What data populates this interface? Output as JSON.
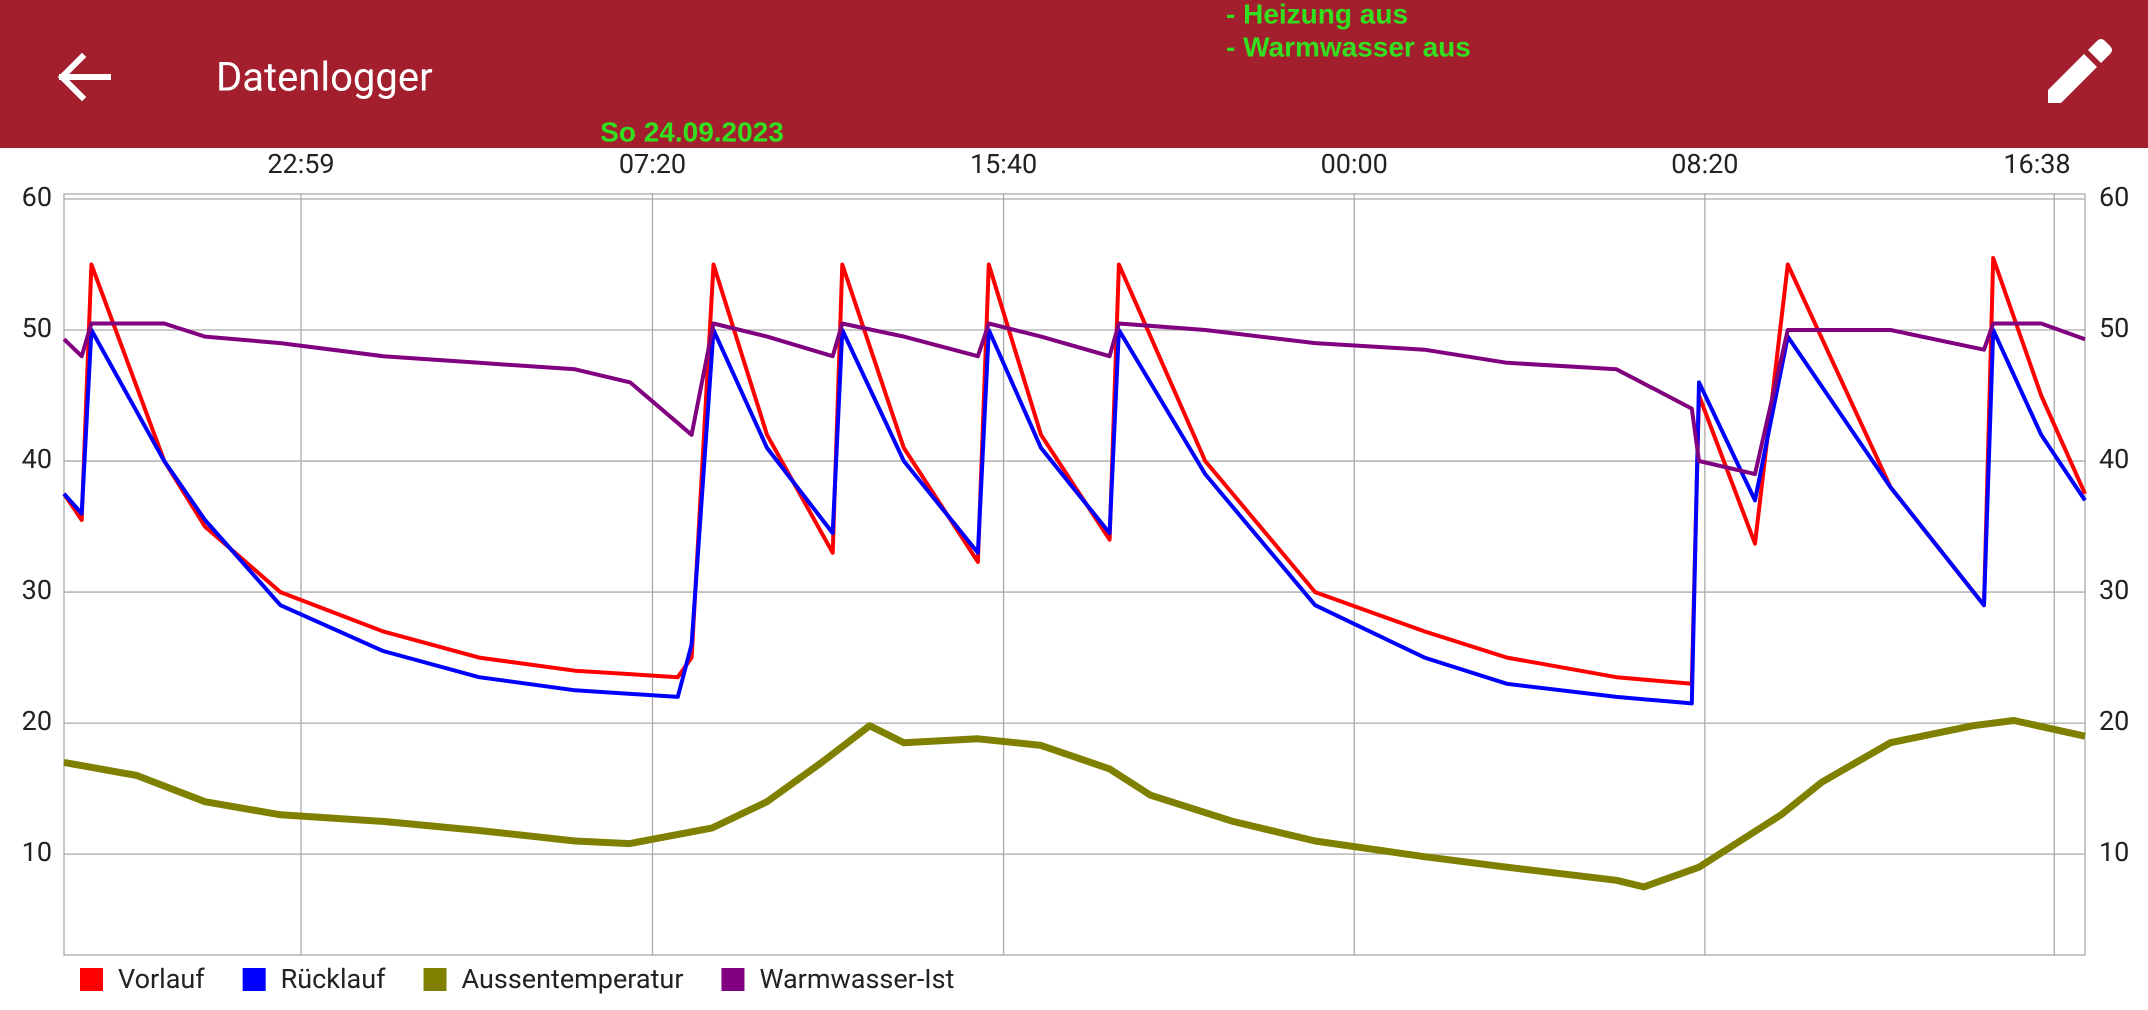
{
  "app_bar": {
    "title": "Datenlogger",
    "status_lines": [
      "- Heizung aus",
      "- Warmwasser aus"
    ]
  },
  "chart_data": {
    "type": "line",
    "annotation": "So 24.09.2023",
    "xlim": [
      17.35,
      65.36
    ],
    "xticks": [
      {
        "value": 22.98,
        "label": "22:59"
      },
      {
        "value": 31.33,
        "label": "07:20"
      },
      {
        "value": 39.67,
        "label": "15:40"
      },
      {
        "value": 48,
        "label": "00:00"
      },
      {
        "value": 56.33,
        "label": "08:20"
      },
      {
        "value": 64.63,
        "label": "16:38"
      }
    ],
    "ylim": [
      2.3,
      60
    ],
    "yticks": [
      10,
      20,
      30,
      40,
      50,
      60
    ],
    "grid": true,
    "legend": "bottom-left",
    "series": [
      {
        "name": "Vorlauf",
        "color": "#ff0000",
        "x": [
          17.35,
          17.77,
          18.0,
          19.73,
          20.7,
          22.49,
          24.93,
          27.21,
          29.49,
          31.93,
          32.26,
          32.78,
          34.05,
          35.61,
          35.84,
          37.3,
          39.06,
          39.32,
          40.56,
          42.19,
          42.41,
          44.46,
          47.07,
          49.67,
          51.63,
          54.23,
          56.02,
          56.19,
          57.52,
          58.3,
          60.74,
          62.96,
          63.18,
          64.32,
          65.36
        ],
        "values": [
          37.5,
          35.5,
          55,
          40,
          35,
          30,
          27,
          25,
          24,
          23.5,
          25,
          55,
          42,
          33,
          55,
          41,
          32.3,
          55,
          42,
          34,
          55,
          40,
          30,
          27,
          25,
          23.5,
          23,
          45,
          33.7,
          55,
          38,
          29,
          55.5,
          45,
          37.5
        ]
      },
      {
        "name": "Rücklauf",
        "color": "#0000ff",
        "x": [
          17.35,
          17.77,
          18.0,
          19.73,
          20.7,
          22.49,
          24.93,
          27.21,
          29.49,
          31.93,
          32.26,
          32.78,
          34.05,
          35.61,
          35.84,
          37.3,
          39.06,
          39.32,
          40.56,
          42.19,
          42.41,
          44.46,
          47.07,
          49.67,
          51.63,
          54.23,
          56.02,
          56.19,
          57.52,
          58.3,
          60.74,
          62.96,
          63.18,
          64.32,
          65.36
        ],
        "values": [
          37.5,
          36,
          50,
          40,
          35.5,
          29,
          25.5,
          23.5,
          22.5,
          22,
          26,
          50,
          41,
          34.5,
          50,
          40,
          33,
          50,
          41,
          34.5,
          50,
          39,
          29,
          25,
          23,
          22,
          21.5,
          46,
          37,
          49.5,
          38,
          29,
          50,
          42,
          37
        ]
      },
      {
        "name": "Aussentemperatur",
        "color": "#808000",
        "x": [
          17.35,
          19.08,
          20.7,
          22.49,
          24.93,
          27.21,
          29.49,
          30.79,
          32.75,
          34.05,
          35.35,
          36.49,
          37.3,
          39.06,
          40.56,
          42.19,
          43.16,
          45.12,
          47.07,
          49.67,
          51.63,
          54.23,
          54.88,
          56.19,
          58.14,
          59.11,
          60.74,
          62.7,
          63.67,
          65.36
        ],
        "values": [
          17,
          16,
          14,
          13,
          12.5,
          11.8,
          11,
          10.8,
          12,
          14,
          17,
          19.8,
          18.5,
          18.8,
          18.3,
          16.5,
          14.5,
          12.5,
          11,
          9.8,
          9,
          8,
          7.5,
          9,
          13,
          15.5,
          18.5,
          19.8,
          20.2,
          19
        ]
      },
      {
        "name": "Warmwasser-Ist",
        "color": "#800080",
        "x": [
          17.35,
          17.77,
          18.0,
          19.73,
          20.7,
          22.49,
          24.93,
          27.21,
          29.49,
          30.8,
          32.26,
          32.78,
          34.05,
          35.61,
          35.84,
          37.3,
          39.06,
          39.32,
          40.56,
          42.19,
          42.41,
          44.46,
          47.07,
          49.67,
          51.63,
          54.23,
          56.02,
          56.19,
          57.52,
          58.3,
          60.74,
          62.96,
          63.18,
          64.32,
          65.36
        ],
        "values": [
          49.3,
          48,
          50.5,
          50.5,
          49.5,
          49,
          48,
          47.5,
          47,
          46,
          42,
          50.5,
          49.5,
          48,
          50.5,
          49.5,
          48,
          50.5,
          49.5,
          48,
          50.5,
          50,
          49,
          48.5,
          47.5,
          47,
          44,
          40,
          39,
          50,
          50,
          48.5,
          50.5,
          50.5,
          49.3
        ]
      }
    ]
  }
}
